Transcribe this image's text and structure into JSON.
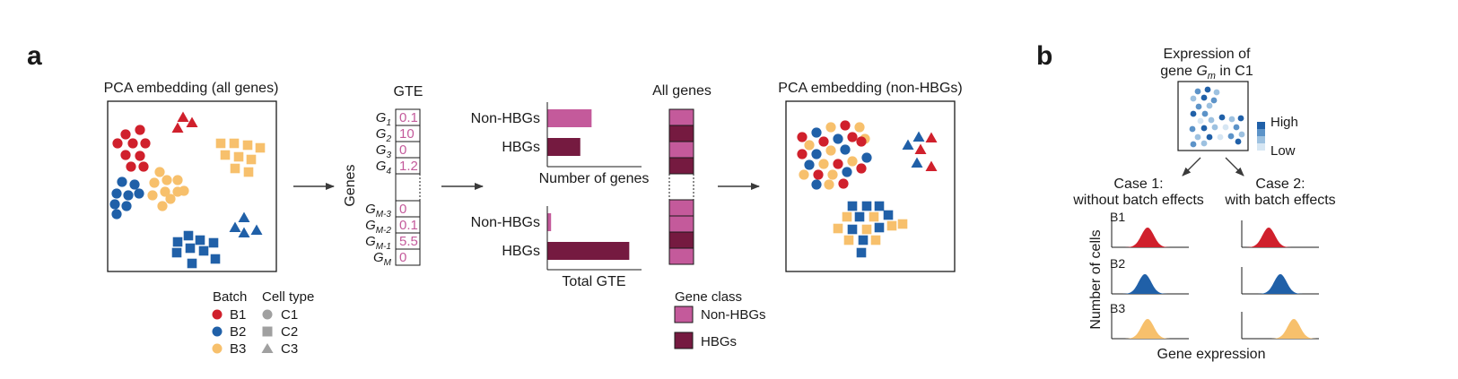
{
  "panel_a": {
    "label": "a",
    "pca_all_title": "PCA embedding (all genes)",
    "gte_title": "GTE",
    "genes_axis": "Genes",
    "genes": [
      {
        "main": "G",
        "sub": "1",
        "value": "0.1"
      },
      {
        "main": "G",
        "sub": "2",
        "value": "10"
      },
      {
        "main": "G",
        "sub": "3",
        "value": "0"
      },
      {
        "main": "G",
        "sub": "4",
        "value": "1.2"
      },
      {
        "main": "G",
        "sub": "M-3",
        "value": "0"
      },
      {
        "main": "G",
        "sub": "M-2",
        "value": "0.1"
      },
      {
        "main": "G",
        "sub": "M-1",
        "value": "5.5"
      },
      {
        "main": "G",
        "sub": "M",
        "value": "0"
      }
    ],
    "bar_top": {
      "rows": [
        "Non-HBGs",
        "HBGs"
      ],
      "values": [
        0.47,
        0.35
      ],
      "xlabel": "Number of genes"
    },
    "bar_bottom": {
      "rows": [
        "Non-HBGs",
        "HBGs"
      ],
      "values": [
        0.04,
        0.87
      ],
      "xlabel": "Total GTE"
    },
    "all_genes_title": "All genes",
    "gene_class_title": "Gene class",
    "gene_class_items": [
      "Non-HBGs",
      "HBGs"
    ],
    "pca_nonhbg_title": "PCA embedding (non-HBGs)",
    "legend_batch_title": "Batch",
    "legend_batches": [
      "B1",
      "B2",
      "B3"
    ],
    "legend_celltype_title": "Cell type",
    "legend_celltypes": [
      "C1",
      "C2",
      "C3"
    ]
  },
  "panel_b": {
    "label": "b",
    "expression_title_1": "Expression of",
    "expression_title_2_pre": "gene ",
    "expression_title_2_var": "G",
    "expression_title_2_sub": "m",
    "expression_title_2_post": " in C1",
    "scale_high": "High",
    "scale_low": "Low",
    "case1_line1": "Case 1:",
    "case1_line2": "without batch effects",
    "case2_line1": "Case 2:",
    "case2_line2": "with batch effects",
    "ylabel": "Number of cells",
    "xlabel": "Gene expression",
    "batches": [
      "B1",
      "B2",
      "B3"
    ]
  },
  "colors": {
    "b1": "#d0202c",
    "b2": "#2060a8",
    "b3": "#f7c06c",
    "non_hbg": "#c45a9b",
    "hbg": "#751a40",
    "gte_value": "#c45a9b",
    "legend_gray": "#a0a0a0"
  }
}
